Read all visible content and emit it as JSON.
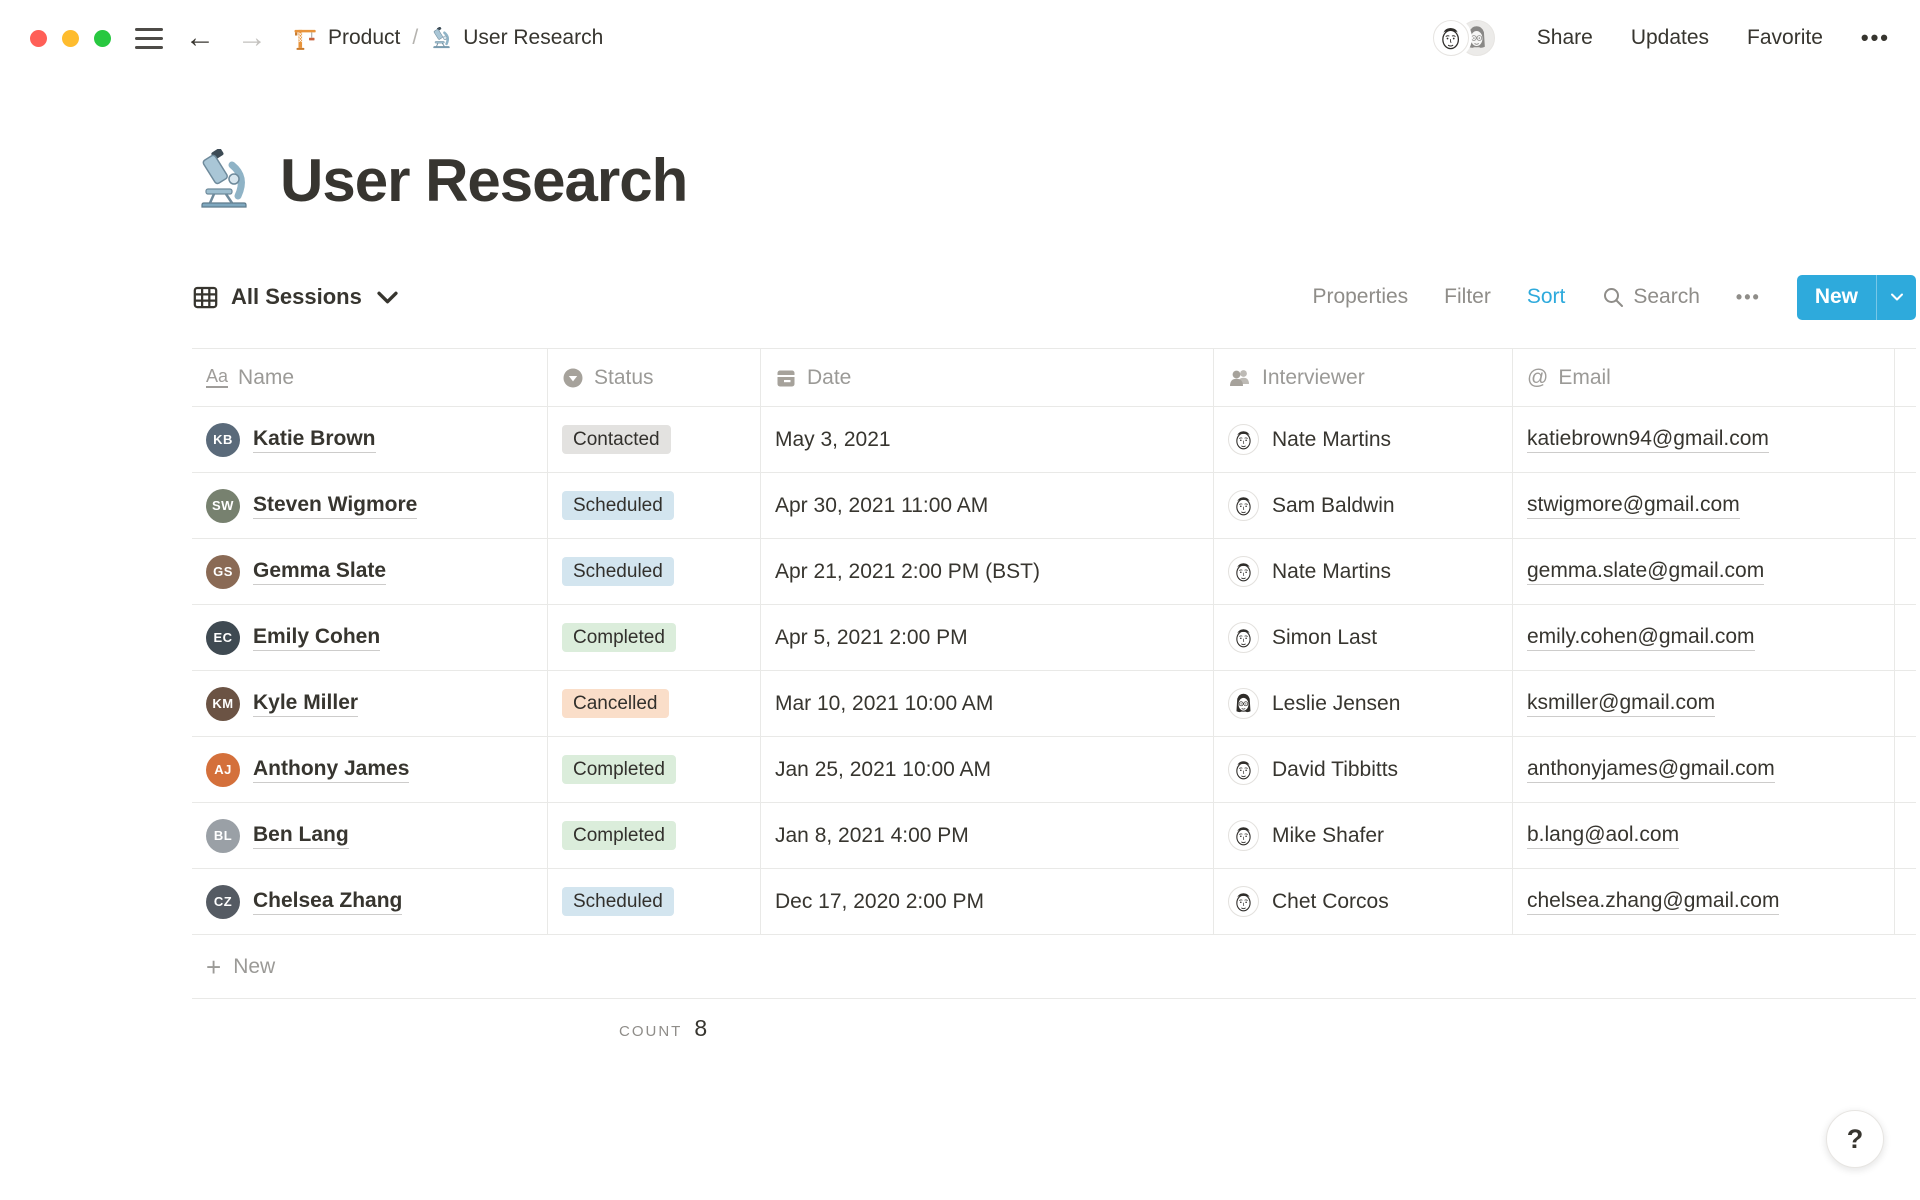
{
  "window": {
    "breadcrumb": {
      "parent": "Product",
      "separator": "/",
      "current": "User Research"
    },
    "actions": {
      "share": "Share",
      "updates": "Updates",
      "favorite": "Favorite",
      "more": "•••"
    },
    "avatars": [
      {
        "variant": "m"
      },
      {
        "variant": "f"
      }
    ]
  },
  "page": {
    "title": "User Research",
    "emoji": "microscope"
  },
  "toolbar": {
    "view_label": "All Sessions",
    "properties": "Properties",
    "filter": "Filter",
    "sort": "Sort",
    "search": "Search",
    "more": "•••",
    "new_label": "New"
  },
  "table": {
    "columns": [
      {
        "label": "Name",
        "icon": "text-icon"
      },
      {
        "label": "Status",
        "icon": "select-icon"
      },
      {
        "label": "Date",
        "icon": "calendar-icon"
      },
      {
        "label": "Interviewer",
        "icon": "person-icon"
      },
      {
        "label": "Email",
        "icon": "at-icon"
      }
    ],
    "rows": [
      {
        "name": "Katie Brown",
        "initials": "KB",
        "avatar_color": "#5a6a7a",
        "status": "Contacted",
        "date": "May 3, 2021",
        "interviewer": "Nate Martins",
        "interviewer_variant": "m",
        "email": "katiebrown94@gmail.com"
      },
      {
        "name": "Steven Wigmore",
        "initials": "SW",
        "avatar_color": "#77816f",
        "status": "Scheduled",
        "date": "Apr 30, 2021 11:00 AM",
        "interviewer": "Sam Baldwin",
        "interviewer_variant": "m",
        "email": "stwigmore@gmail.com"
      },
      {
        "name": "Gemma Slate",
        "initials": "GS",
        "avatar_color": "#8a6a55",
        "status": "Scheduled",
        "date": "Apr 21, 2021 2:00 PM (BST)",
        "interviewer": "Nate Martins",
        "interviewer_variant": "m",
        "email": "gemma.slate@gmail.com"
      },
      {
        "name": "Emily Cohen",
        "initials": "EC",
        "avatar_color": "#3f4a52",
        "status": "Completed",
        "date": "Apr 5, 2021 2:00 PM",
        "interviewer": "Simon Last",
        "interviewer_variant": "m",
        "email": "emily.cohen@gmail.com"
      },
      {
        "name": "Kyle Miller",
        "initials": "KM",
        "avatar_color": "#6b5344",
        "status": "Cancelled",
        "date": "Mar 10, 2021 10:00 AM",
        "interviewer": "Leslie Jensen",
        "interviewer_variant": "f",
        "email": "ksmiller@gmail.com"
      },
      {
        "name": "Anthony James",
        "initials": "AJ",
        "avatar_color": "#d4703b",
        "status": "Completed",
        "date": "Jan 25, 2021 10:00 AM",
        "interviewer": "David Tibbitts",
        "interviewer_variant": "m",
        "email": "anthonyjames@gmail.com"
      },
      {
        "name": "Ben Lang",
        "initials": "BL",
        "avatar_color": "#9aa0a6",
        "status": "Completed",
        "date": "Jan 8, 2021 4:00 PM",
        "interviewer": "Mike Shafer",
        "interviewer_variant": "m",
        "email": "b.lang@aol.com"
      },
      {
        "name": "Chelsea Zhang",
        "initials": "CZ",
        "avatar_color": "#555b63",
        "status": "Scheduled",
        "date": "Dec 17, 2020 2:00 PM",
        "interviewer": "Chet Corcos",
        "interviewer_variant": "m",
        "email": "chelsea.zhang@gmail.com"
      }
    ],
    "new_row_label": "New",
    "count_label": "COUNT",
    "count_value": "8"
  },
  "help_label": "?",
  "colors": {
    "accent": "#2eaadc",
    "status": {
      "Contacted": "#e3e2e0",
      "Scheduled": "#d3e5ef",
      "Completed": "#dbeddb",
      "Cancelled": "#fadec9"
    }
  }
}
